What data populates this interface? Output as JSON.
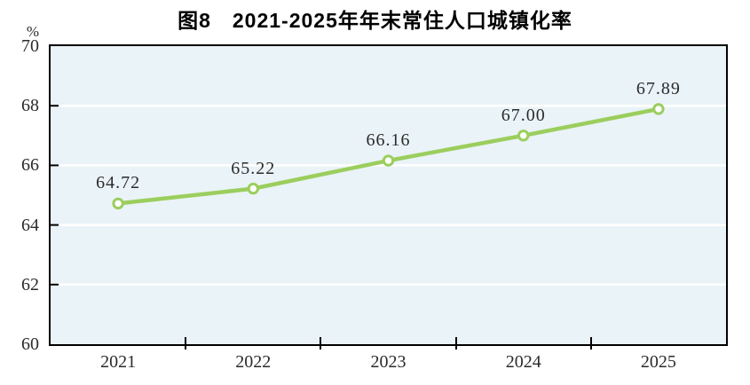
{
  "chart_data": {
    "type": "line",
    "title": "图8　2021-2025年年末常住人口城镇化率",
    "unit_label": "%",
    "categories": [
      "2021",
      "2022",
      "2023",
      "2024",
      "2025"
    ],
    "values": [
      64.72,
      65.22,
      66.16,
      67.0,
      67.89
    ],
    "data_labels": [
      "64.72",
      "65.22",
      "66.16",
      "67.00",
      "67.89"
    ],
    "ylim": [
      60,
      70
    ],
    "yticks": [
      70,
      68,
      66,
      64,
      62,
      60
    ],
    "grid": true,
    "legend": "none",
    "colors": {
      "line": "#9bce5d",
      "marker_fill": "#ffffff",
      "plot_bg": "#eaf3f7",
      "grid": "#ffffff",
      "axis": "#000000",
      "text": "#2b2b2b",
      "title": "#000000"
    }
  }
}
